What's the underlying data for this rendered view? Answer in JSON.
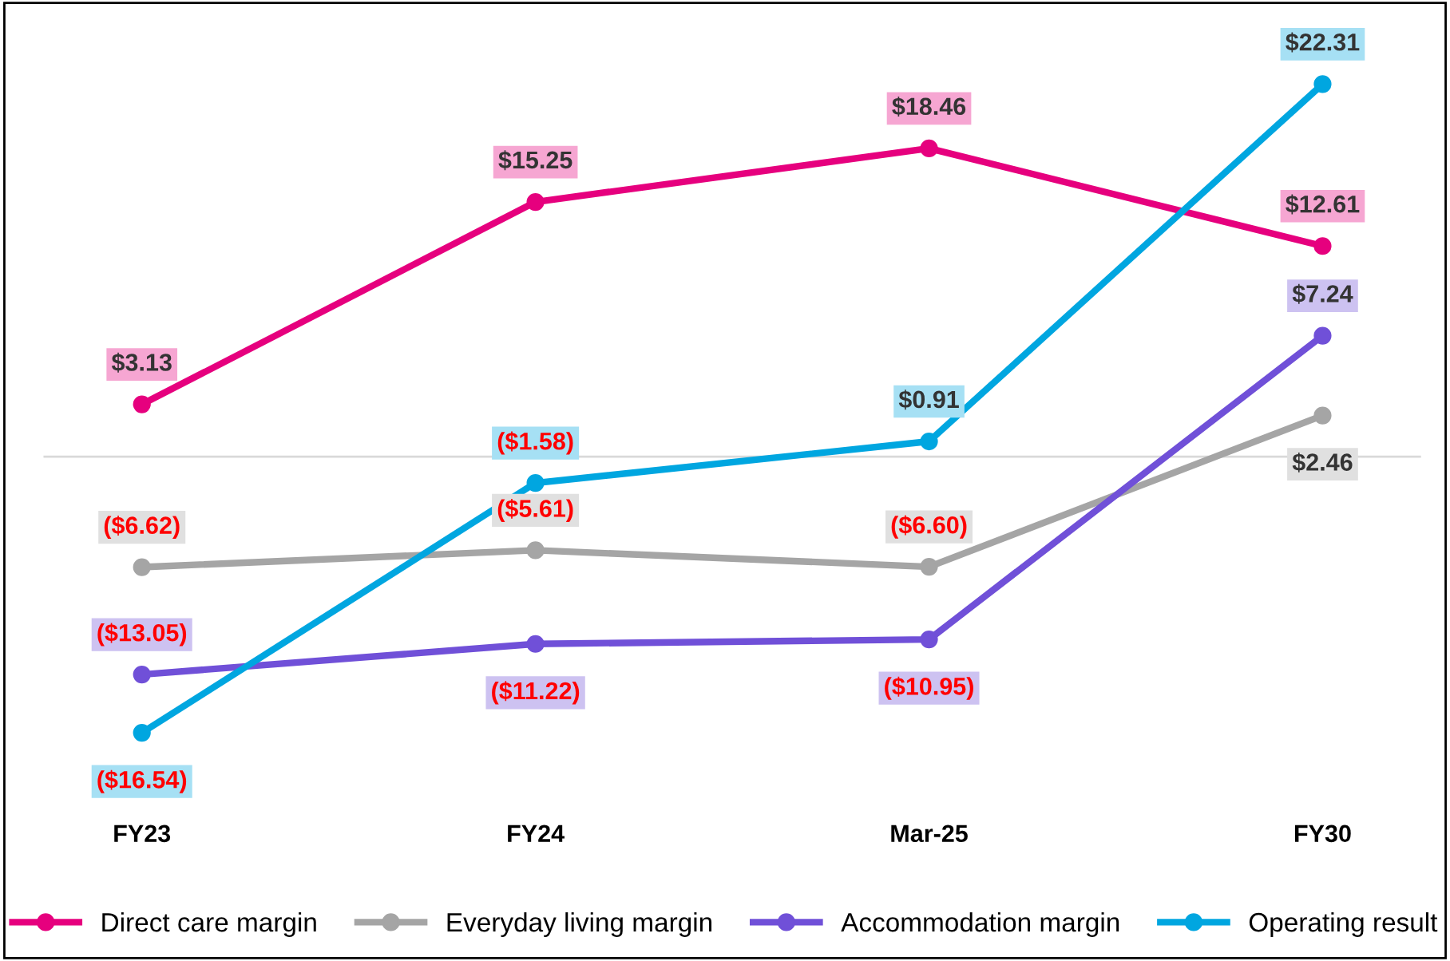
{
  "chart_data": {
    "type": "line",
    "categories": [
      "FY23",
      "FY24",
      "Mar-25",
      "FY30"
    ],
    "series": [
      {
        "name": "Direct care margin",
        "color": "#e6007e",
        "values": [
          3.13,
          15.25,
          18.46,
          12.61
        ],
        "value_labels": [
          "$3.13",
          "$15.25",
          "$18.46",
          "$12.61"
        ]
      },
      {
        "name": "Everyday living margin",
        "color": "#a5a5a5",
        "values": [
          -6.62,
          -5.61,
          -6.6,
          2.46
        ],
        "value_labels": [
          "($6.62)",
          "($5.61)",
          "($6.60)",
          "$2.46"
        ]
      },
      {
        "name": "Accommodation margin",
        "color": "#7050d8",
        "values": [
          -13.05,
          -11.22,
          -10.95,
          7.24
        ],
        "value_labels": [
          "($13.05)",
          "($11.22)",
          "($10.95)",
          "$7.24"
        ]
      },
      {
        "name": "Operating result",
        "color": "#00a6e0",
        "values": [
          -16.54,
          -1.58,
          0.91,
          22.31
        ],
        "value_labels": [
          "($16.54)",
          "($1.58)",
          "$0.91",
          "$22.31"
        ]
      }
    ],
    "ref_lines": [
      {
        "axis": "y",
        "value": 0,
        "color": "#d9d9d9"
      }
    ],
    "marker": "circle",
    "line_style": "solid",
    "grid": false,
    "legend": "bottom",
    "tick_labels": "x"
  }
}
